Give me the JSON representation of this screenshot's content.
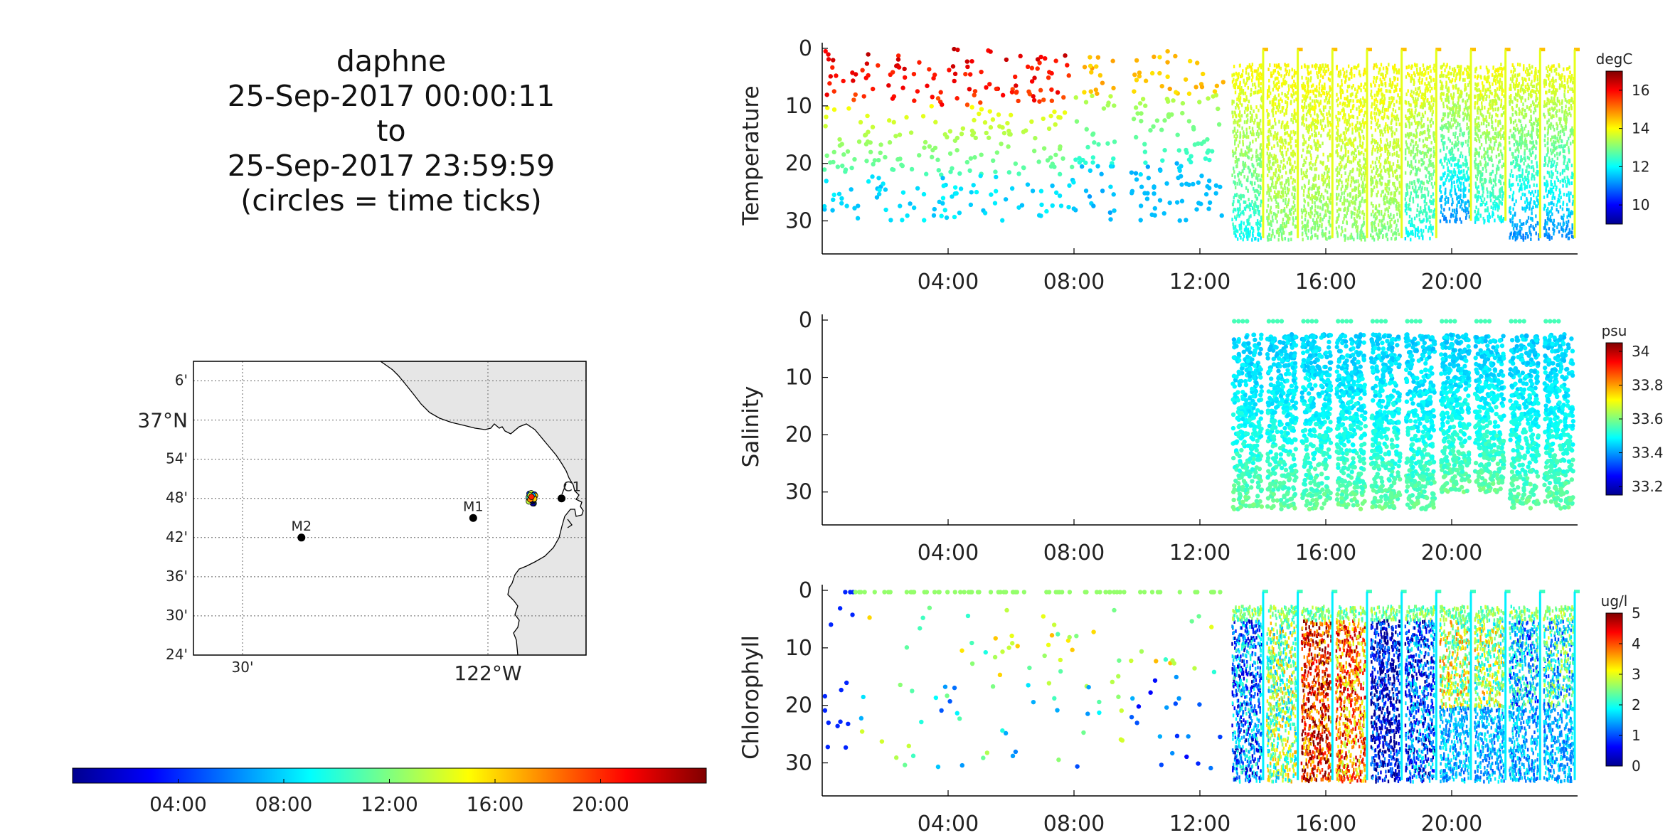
{
  "title": {
    "vehicle": "daphne",
    "start": "25-Sep-2017 00:00:11",
    "to": "to",
    "end": "25-Sep-2017 23:59:59",
    "note": "(circles = time ticks)"
  },
  "map": {
    "lat_labels": [
      "6'",
      "37°N",
      "54'",
      "48'",
      "42'",
      "36'",
      "30'",
      "24'"
    ],
    "lon_labels": [
      "30'",
      "122°W"
    ],
    "stations": [
      {
        "name": "M2",
        "lon": -122.38,
        "lat": 36.7
      },
      {
        "name": "M1",
        "lon": -122.03,
        "lat": 36.75
      },
      {
        "name": "C1",
        "lon": -121.85,
        "lat": 36.8
      }
    ],
    "vehicle_track": {
      "lon": -121.91,
      "lat": 36.8
    },
    "land_color": "#e6e6e6"
  },
  "time_colorbar": {
    "ticks": [
      "04:00",
      "08:00",
      "12:00",
      "16:00",
      "20:00"
    ],
    "range_hours": [
      0,
      24
    ]
  },
  "chart_data": [
    {
      "type": "scatter",
      "ylabel": "Temperature",
      "units": "degC",
      "x_ticks": [
        "04:00",
        "08:00",
        "12:00",
        "16:00",
        "20:00"
      ],
      "xlim_hours": [
        0,
        24
      ],
      "y_ticks": [
        "0",
        "10",
        "20",
        "30"
      ],
      "ylim": [
        35,
        0
      ],
      "colorbar_ticks": [
        "10",
        "12",
        "14",
        "16"
      ],
      "clim": [
        9,
        17
      ],
      "sparse_period_hours": [
        0,
        13
      ],
      "profiles_start_hours": 13,
      "profile_bottom_depth": [
        33,
        33,
        33,
        33,
        33,
        33,
        30,
        30,
        33,
        33
      ],
      "deep_value_by_profile": [
        12,
        13,
        13,
        13,
        13,
        12,
        11,
        12,
        11,
        11
      ],
      "surface_value": 14
    },
    {
      "type": "scatter",
      "ylabel": "Salinity",
      "units": "psu",
      "x_ticks": [
        "04:00",
        "08:00",
        "12:00",
        "16:00",
        "20:00"
      ],
      "xlim_hours": [
        0,
        24
      ],
      "y_ticks": [
        "0",
        "10",
        "20",
        "30"
      ],
      "ylim": [
        35,
        0
      ],
      "colorbar_ticks": [
        "33.2",
        "33.4",
        "33.6",
        "33.8",
        "34"
      ],
      "clim": [
        33.15,
        34.05
      ],
      "data_start_hours": 13,
      "surface_value": 33.45,
      "deep_value": 33.58
    },
    {
      "type": "scatter",
      "ylabel": "Chlorophyll",
      "units": "ug/l",
      "x_ticks": [
        "04:00",
        "08:00",
        "12:00",
        "16:00",
        "20:00"
      ],
      "xlim_hours": [
        0,
        24
      ],
      "y_ticks": [
        "0",
        "10",
        "20",
        "30"
      ],
      "ylim": [
        35,
        0
      ],
      "colorbar_ticks": [
        "0",
        "1",
        "2",
        "3",
        "4",
        "5"
      ],
      "clim": [
        0,
        5
      ],
      "sparse_period_hours": [
        0,
        13
      ],
      "profiles_start_hours": 13,
      "profile_mean_by_profile": [
        1.2,
        2.5,
        4.3,
        3.8,
        0.4,
        1.0,
        2.8,
        2.6,
        1.6,
        1.9
      ]
    }
  ],
  "colors": {
    "jet_stops": [
      "#00008f",
      "#0000ff",
      "#00ffff",
      "#ffff00",
      "#ff0000",
      "#800000"
    ]
  }
}
